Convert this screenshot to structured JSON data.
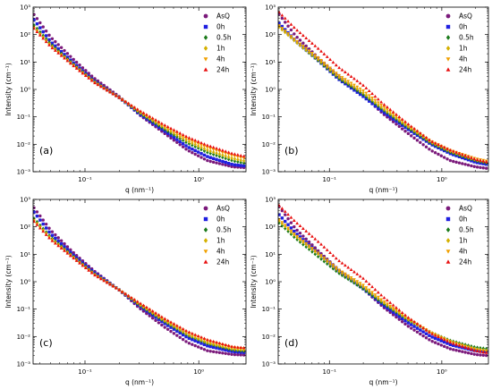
{
  "chart_data": [
    {
      "type": "scatter",
      "panel_label": "(a)",
      "xlabel": "q (nm⁻¹)",
      "ylabel": "Intensity (cm⁻¹)",
      "xscale": "log",
      "yscale": "log",
      "xlim": [
        0.035,
        2.6
      ],
      "ylim": [
        0.001,
        1000
      ],
      "x_ticks": [
        "10⁻¹",
        "10⁰"
      ],
      "y_ticks": [
        "10⁻³",
        "10⁻²",
        "10⁻¹",
        "10⁰",
        "10¹",
        "10²",
        "10³"
      ],
      "legend_position": "top-right",
      "series": [
        {
          "name": "AsQ",
          "marker": "circle",
          "color": "#7b1a7b",
          "x": [
            0.035,
            0.05,
            0.08,
            0.12,
            0.2,
            0.3,
            0.5,
            0.8,
            1.2,
            2.0,
            2.6
          ],
          "y": [
            600,
            80,
            12,
            2.6,
            0.55,
            0.12,
            0.025,
            0.006,
            0.0025,
            0.0015,
            0.0014
          ]
        },
        {
          "name": "0h",
          "marker": "square",
          "color": "#1f1fe0",
          "x": [
            0.035,
            0.05,
            0.08,
            0.12,
            0.2,
            0.3,
            0.5,
            0.8,
            1.2,
            2.0,
            2.6
          ],
          "y": [
            380,
            55,
            9,
            2.1,
            0.5,
            0.13,
            0.03,
            0.008,
            0.0035,
            0.0018,
            0.0016
          ]
        },
        {
          "name": "0.5h",
          "marker": "diamond",
          "color": "#1a7a1a",
          "x": [
            0.035,
            0.05,
            0.08,
            0.12,
            0.2,
            0.3,
            0.5,
            0.8,
            1.2,
            2.0,
            2.6
          ],
          "y": [
            240,
            45,
            8,
            2.0,
            0.5,
            0.14,
            0.035,
            0.011,
            0.005,
            0.0025,
            0.002
          ]
        },
        {
          "name": "1h",
          "marker": "diamond",
          "color": "#d4b000",
          "x": [
            0.035,
            0.05,
            0.08,
            0.12,
            0.2,
            0.3,
            0.5,
            0.8,
            1.2,
            2.0,
            2.6
          ],
          "y": [
            200,
            40,
            7.5,
            1.9,
            0.5,
            0.15,
            0.04,
            0.013,
            0.006,
            0.003,
            0.0024
          ]
        },
        {
          "name": "4h",
          "marker": "triangle-down",
          "color": "#f0a000",
          "x": [
            0.035,
            0.05,
            0.08,
            0.12,
            0.2,
            0.3,
            0.5,
            0.8,
            1.2,
            2.0,
            2.6
          ],
          "y": [
            190,
            38,
            7.2,
            1.85,
            0.5,
            0.16,
            0.045,
            0.015,
            0.0075,
            0.0038,
            0.003
          ]
        },
        {
          "name": "24h",
          "marker": "triangle-up",
          "color": "#e81010",
          "x": [
            0.035,
            0.05,
            0.08,
            0.12,
            0.2,
            0.3,
            0.5,
            0.8,
            1.2,
            2.0,
            2.6
          ],
          "y": [
            180,
            36,
            7.0,
            1.8,
            0.5,
            0.17,
            0.05,
            0.018,
            0.009,
            0.0045,
            0.0035
          ]
        }
      ]
    },
    {
      "type": "scatter",
      "panel_label": "(b)",
      "xlabel": "q (nm⁻¹)",
      "ylabel": "Intensity (cm⁻¹)",
      "xscale": "log",
      "yscale": "log",
      "xlim": [
        0.035,
        2.6
      ],
      "ylim": [
        0.001,
        1000
      ],
      "x_ticks": [
        "10⁻¹",
        "10⁰"
      ],
      "y_ticks": [
        "10⁻³",
        "10⁻²",
        "10⁻¹",
        "10⁰",
        "10¹",
        "10²",
        "10³"
      ],
      "legend_position": "top-right",
      "series": [
        {
          "name": "AsQ",
          "marker": "circle",
          "color": "#7b1a7b",
          "x": [
            0.035,
            0.05,
            0.08,
            0.12,
            0.2,
            0.3,
            0.5,
            0.8,
            1.2,
            2.0,
            2.6
          ],
          "y": [
            600,
            90,
            14,
            3.0,
            0.6,
            0.13,
            0.025,
            0.006,
            0.0025,
            0.0015,
            0.0013
          ]
        },
        {
          "name": "0h",
          "marker": "square",
          "color": "#1f1fe0",
          "x": [
            0.035,
            0.05,
            0.08,
            0.12,
            0.2,
            0.3,
            0.5,
            0.8,
            1.2,
            2.0,
            2.6
          ],
          "y": [
            280,
            60,
            11,
            2.4,
            0.55,
            0.15,
            0.035,
            0.01,
            0.0045,
            0.0022,
            0.0018
          ]
        },
        {
          "name": "0.5h",
          "marker": "diamond",
          "color": "#1a7a1a",
          "x": [
            0.035,
            0.05,
            0.08,
            0.12,
            0.2,
            0.3,
            0.5,
            0.8,
            1.2,
            2.0,
            2.6
          ],
          "y": [
            220,
            55,
            11,
            2.6,
            0.65,
            0.18,
            0.04,
            0.011,
            0.005,
            0.0025,
            0.002
          ]
        },
        {
          "name": "1h",
          "marker": "diamond",
          "color": "#d4b000",
          "x": [
            0.035,
            0.05,
            0.08,
            0.12,
            0.2,
            0.3,
            0.5,
            0.8,
            1.2,
            2.0,
            2.6
          ],
          "y": [
            200,
            55,
            12,
            2.9,
            0.75,
            0.2,
            0.045,
            0.012,
            0.0055,
            0.0027,
            0.0022
          ]
        },
        {
          "name": "4h",
          "marker": "triangle-down",
          "color": "#f0a000",
          "x": [
            0.035,
            0.05,
            0.08,
            0.12,
            0.2,
            0.3,
            0.5,
            0.8,
            1.2,
            2.0,
            2.6
          ],
          "y": [
            230,
            62,
            14,
            3.4,
            0.9,
            0.24,
            0.05,
            0.013,
            0.006,
            0.003,
            0.0024
          ]
        },
        {
          "name": "24h",
          "marker": "triangle-up",
          "color": "#e81010",
          "x": [
            0.035,
            0.05,
            0.08,
            0.12,
            0.2,
            0.3,
            0.5,
            0.8,
            1.2,
            2.0,
            2.6
          ],
          "y": [
            700,
            160,
            30,
            6.5,
            1.4,
            0.3,
            0.055,
            0.013,
            0.006,
            0.0028,
            0.0022
          ]
        }
      ]
    },
    {
      "type": "scatter",
      "panel_label": "(c)",
      "xlabel": "q (nm⁻¹)",
      "ylabel": "Intensity (cm⁻¹)",
      "xscale": "log",
      "yscale": "log",
      "xlim": [
        0.035,
        2.6
      ],
      "ylim": [
        0.001,
        1000
      ],
      "x_ticks": [
        "10⁻¹",
        "10⁰"
      ],
      "y_ticks": [
        "10⁻³",
        "10⁻²",
        "10⁻¹",
        "10⁰",
        "10¹",
        "10²",
        "10³"
      ],
      "legend_position": "top-right",
      "series": [
        {
          "name": "AsQ",
          "marker": "circle",
          "color": "#7b1a7b",
          "x": [
            0.035,
            0.05,
            0.08,
            0.12,
            0.2,
            0.3,
            0.5,
            0.8,
            1.2,
            2.0,
            2.6
          ],
          "y": [
            550,
            75,
            11,
            2.5,
            0.5,
            0.11,
            0.022,
            0.006,
            0.003,
            0.0022,
            0.0021
          ]
        },
        {
          "name": "0h",
          "marker": "square",
          "color": "#1f1fe0",
          "x": [
            0.035,
            0.05,
            0.08,
            0.12,
            0.2,
            0.3,
            0.5,
            0.8,
            1.2,
            2.0,
            2.6
          ],
          "y": [
            380,
            55,
            9,
            2.2,
            0.5,
            0.13,
            0.03,
            0.009,
            0.0045,
            0.0028,
            0.0026
          ]
        },
        {
          "name": "0.5h",
          "marker": "diamond",
          "color": "#1a7a1a",
          "x": [
            0.035,
            0.05,
            0.08,
            0.12,
            0.2,
            0.3,
            0.5,
            0.8,
            1.2,
            2.0,
            2.6
          ],
          "y": [
            220,
            42,
            8,
            2.0,
            0.5,
            0.14,
            0.035,
            0.011,
            0.0055,
            0.0032,
            0.0029
          ]
        },
        {
          "name": "1h",
          "marker": "diamond",
          "color": "#d4b000",
          "x": [
            0.035,
            0.05,
            0.08,
            0.12,
            0.2,
            0.3,
            0.5,
            0.8,
            1.2,
            2.0,
            2.6
          ],
          "y": [
            190,
            38,
            7.5,
            1.9,
            0.5,
            0.15,
            0.038,
            0.012,
            0.006,
            0.0035,
            0.0032
          ]
        },
        {
          "name": "4h",
          "marker": "triangle-down",
          "color": "#f0a000",
          "x": [
            0.035,
            0.05,
            0.08,
            0.12,
            0.2,
            0.3,
            0.5,
            0.8,
            1.2,
            2.0,
            2.6
          ],
          "y": [
            180,
            36,
            7.2,
            1.85,
            0.5,
            0.16,
            0.042,
            0.014,
            0.007,
            0.004,
            0.0036
          ]
        },
        {
          "name": "24h",
          "marker": "triangle-up",
          "color": "#e81010",
          "x": [
            0.035,
            0.05,
            0.08,
            0.12,
            0.2,
            0.3,
            0.5,
            0.8,
            1.2,
            2.0,
            2.6
          ],
          "y": [
            170,
            34,
            7.0,
            1.8,
            0.5,
            0.17,
            0.045,
            0.015,
            0.0075,
            0.0042,
            0.0038
          ]
        }
      ]
    },
    {
      "type": "scatter",
      "panel_label": "(d)",
      "xlabel": "q (nm⁻¹)",
      "ylabel": "Intensity (cm⁻¹)",
      "xscale": "log",
      "yscale": "log",
      "xlim": [
        0.035,
        2.6
      ],
      "ylim": [
        0.001,
        1000
      ],
      "x_ticks": [
        "10⁻¹",
        "10⁰"
      ],
      "y_ticks": [
        "10⁻³",
        "10⁻²",
        "10⁻¹",
        "10⁰",
        "10¹",
        "10²",
        "10³"
      ],
      "legend_position": "top-right",
      "series": [
        {
          "name": "AsQ",
          "marker": "circle",
          "color": "#7b1a7b",
          "x": [
            0.035,
            0.05,
            0.08,
            0.12,
            0.2,
            0.3,
            0.5,
            0.8,
            1.2,
            2.0,
            2.6
          ],
          "y": [
            600,
            85,
            13,
            2.8,
            0.55,
            0.12,
            0.024,
            0.007,
            0.0035,
            0.0022,
            0.002
          ]
        },
        {
          "name": "0h",
          "marker": "square",
          "color": "#1f1fe0",
          "x": [
            0.035,
            0.05,
            0.08,
            0.12,
            0.2,
            0.3,
            0.5,
            0.8,
            1.2,
            2.0,
            2.6
          ],
          "y": [
            300,
            60,
            11,
            2.5,
            0.55,
            0.14,
            0.032,
            0.01,
            0.005,
            0.003,
            0.0027
          ]
        },
        {
          "name": "0.5h",
          "marker": "diamond",
          "color": "#1a7a1a",
          "x": [
            0.035,
            0.05,
            0.08,
            0.12,
            0.2,
            0.3,
            0.5,
            0.8,
            1.2,
            2.0,
            2.6
          ],
          "y": [
            150,
            38,
            8,
            2.1,
            0.55,
            0.16,
            0.04,
            0.014,
            0.007,
            0.004,
            0.0035
          ]
        },
        {
          "name": "1h",
          "marker": "diamond",
          "color": "#d4b000",
          "x": [
            0.035,
            0.05,
            0.08,
            0.12,
            0.2,
            0.3,
            0.5,
            0.8,
            1.2,
            2.0,
            2.6
          ],
          "y": [
            180,
            45,
            10,
            2.5,
            0.65,
            0.18,
            0.043,
            0.014,
            0.0065,
            0.0035,
            0.003
          ]
        },
        {
          "name": "4h",
          "marker": "triangle-down",
          "color": "#f0a000",
          "x": [
            0.035,
            0.05,
            0.08,
            0.12,
            0.2,
            0.3,
            0.5,
            0.8,
            1.2,
            2.0,
            2.6
          ],
          "y": [
            200,
            50,
            11,
            2.8,
            0.75,
            0.2,
            0.046,
            0.014,
            0.0065,
            0.0033,
            0.0028
          ]
        },
        {
          "name": "24h",
          "marker": "triangle-up",
          "color": "#e81010",
          "x": [
            0.035,
            0.05,
            0.08,
            0.12,
            0.2,
            0.3,
            0.5,
            0.8,
            1.2,
            2.0,
            2.6
          ],
          "y": [
            650,
            150,
            28,
            6.0,
            1.3,
            0.28,
            0.05,
            0.013,
            0.006,
            0.003,
            0.0025
          ]
        }
      ]
    }
  ]
}
